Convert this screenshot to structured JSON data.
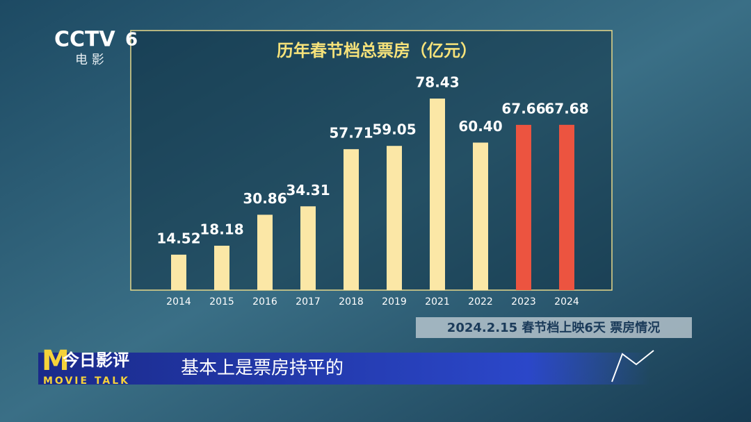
{
  "chart_data": {
    "type": "bar",
    "title": "历年春节档总票房（亿元）",
    "categories": [
      "2014",
      "2015",
      "2016",
      "2017",
      "2018",
      "2019",
      "2021",
      "2022",
      "2023",
      "2024"
    ],
    "values": [
      14.52,
      18.18,
      30.86,
      34.31,
      57.71,
      59.05,
      78.43,
      60.4,
      67.66,
      67.68
    ],
    "value_labels": [
      "14.52",
      "18.18",
      "30.86",
      "34.31",
      "57.71",
      "59.05",
      "78.43",
      "60.40",
      "67.66",
      "67.68"
    ],
    "colors": [
      "#fbe7a6",
      "#fbe7a6",
      "#fbe7a6",
      "#fbe7a6",
      "#fbe7a6",
      "#fbe7a6",
      "#fbe7a6",
      "#fbe7a6",
      "#ec5440",
      "#ec5440"
    ]
  },
  "overlay": {
    "logo": "CCTV",
    "channel": "6",
    "logo_sub": "电 影",
    "date_banner": "2024.2.15 春节档上映6天 票房情况",
    "program": "今日影评",
    "program_en": "MOVIE TALK",
    "caption": "基本上是票房持平的"
  }
}
